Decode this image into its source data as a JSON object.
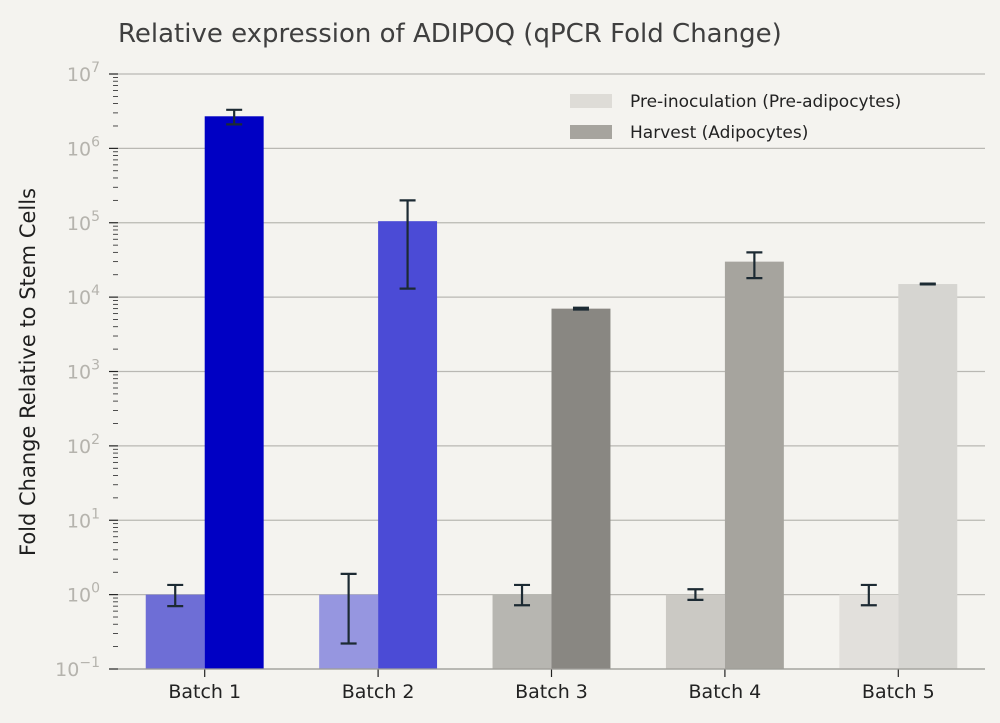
{
  "chart_data": {
    "type": "bar",
    "title": "Relative expression of ADIPOQ (qPCR Fold Change)",
    "xlabel": "",
    "ylabel": "Fold Change Relative to Stem Cells",
    "y_scale": "log",
    "ylim": [
      0.1,
      10000000
    ],
    "y_ticks": [
      0.1,
      1,
      10,
      100,
      1000,
      10000,
      100000,
      1000000,
      10000000
    ],
    "grid": "horizontal",
    "legend_position": "top-right",
    "categories": [
      "Batch 1",
      "Batch 2",
      "Batch 3",
      "Batch 4",
      "Batch 5"
    ],
    "series": [
      {
        "name": "Pre-inoculation (Pre-adipocytes)",
        "legend_color": "#dedcd7",
        "values": [
          1,
          1,
          1,
          1,
          1
        ],
        "error_low": [
          0.7,
          0.22,
          0.72,
          0.85,
          0.72
        ],
        "error_high": [
          1.35,
          1.9,
          1.35,
          1.18,
          1.35
        ],
        "colors": [
          "#6e6ed6",
          "#9696e0",
          "#b7b6b1",
          "#cbc9c4",
          "#e2e0dc"
        ]
      },
      {
        "name": "Harvest (Adipocytes)",
        "legend_color": "#a6a49e",
        "values": [
          2700000,
          105000,
          7000,
          30000,
          15000
        ],
        "error_low": [
          2100000,
          13000,
          6800,
          18000,
          14800
        ],
        "error_high": [
          3300000,
          200000,
          7200,
          40000,
          15200
        ],
        "colors": [
          "#0000c4",
          "#4b4bd6",
          "#898782",
          "#a6a49e",
          "#d6d5d1"
        ]
      }
    ]
  }
}
